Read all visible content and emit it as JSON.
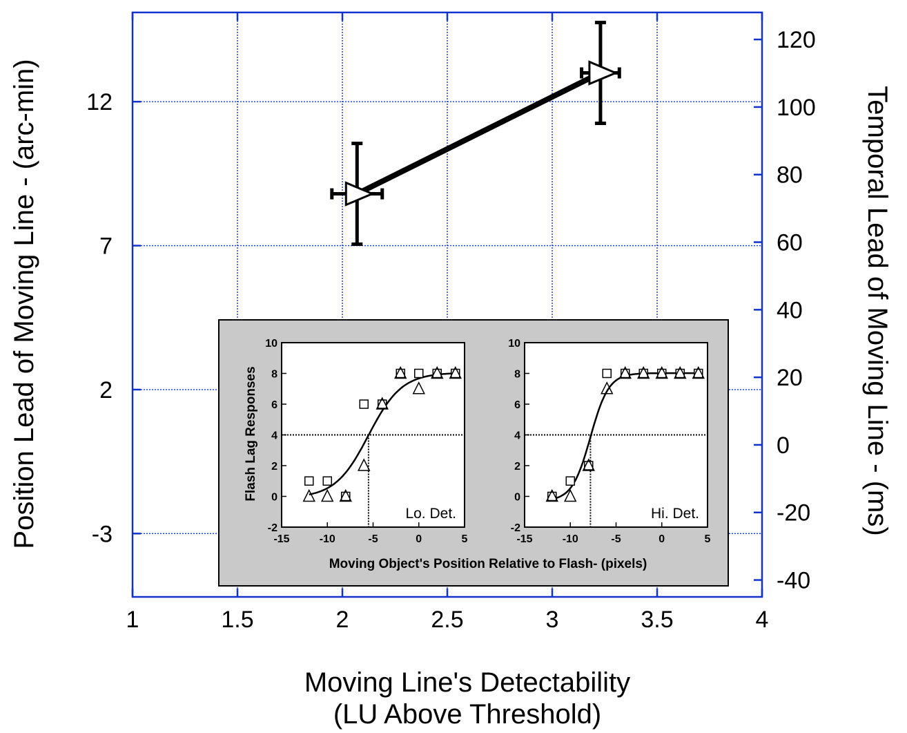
{
  "chart_data": [
    {
      "type": "line",
      "x_axis": {
        "label_line1": "Moving Line's Detectability",
        "label_line2": "(LU Above Threshold)",
        "range": [
          1,
          4
        ],
        "ticks": [
          "1",
          "1.5",
          "2",
          "2.5",
          "3",
          "3.5",
          "4"
        ]
      },
      "y_axis_left": {
        "label": "Position Lead of Moving Line - (arc-min)",
        "range": [
          -5.2,
          15.1
        ],
        "ticks": [
          "-3",
          "2",
          "7",
          "12"
        ]
      },
      "y_axis_right": {
        "label": "Temporal Lead of Moving Line - (ms)",
        "range": [
          -45,
          128
        ],
        "ticks": [
          "-40",
          "-20",
          "0",
          "20",
          "40",
          "60",
          "80",
          "100",
          "120"
        ]
      },
      "grid": true,
      "grid_color": "#1133cc",
      "series": [
        {
          "marker": "triangle-right",
          "points": [
            {
              "x": 2.07,
              "y": 8.8,
              "x_err": 0.12,
              "y_err": 1.75
            },
            {
              "x": 3.23,
              "y": 13.0,
              "x_err": 0.09,
              "y_err": 1.75
            }
          ]
        }
      ]
    },
    {
      "type": "scatter",
      "panel_label": "Lo. Det.",
      "ylabel": "Flash Lag Responses",
      "xlabel": "Moving Object's Position Relative to Flash- (pixels)",
      "x_range": [
        -15,
        5
      ],
      "y_range": [
        -2,
        10
      ],
      "x_ticks": [
        "-15",
        "-10",
        "-5",
        "0",
        "5"
      ],
      "y_ticks": [
        "-2",
        "0",
        "2",
        "4",
        "6",
        "8",
        "10"
      ],
      "threshold_y": 4,
      "threshold_x": -5.5,
      "series": [
        {
          "marker": "square",
          "x": [
            -12,
            -10,
            -8,
            -6,
            -4,
            -2,
            0,
            2,
            4
          ],
          "y": [
            1,
            1,
            0,
            6,
            6,
            8,
            8,
            8,
            8
          ]
        },
        {
          "marker": "triangle",
          "x": [
            -12,
            -10,
            -8,
            -6,
            -4,
            -2,
            0,
            2,
            4
          ],
          "y": [
            0,
            0,
            0,
            2,
            6,
            8,
            7,
            8,
            8
          ]
        }
      ],
      "fit": {
        "x0": -5.5,
        "slope": 0.55,
        "min": -0.1,
        "max": 8.05
      }
    },
    {
      "type": "scatter",
      "panel_label": "Hi. Det.",
      "ylabel": "",
      "xlabel": "Moving Object's Position Relative to Flash- (pixels)",
      "x_range": [
        -15,
        5
      ],
      "y_range": [
        -2,
        10
      ],
      "x_ticks": [
        "-15",
        "-10",
        "-5",
        "0",
        "5"
      ],
      "y_ticks": [
        "-2",
        "0",
        "2",
        "4",
        "6",
        "8",
        "10"
      ],
      "threshold_y": 4,
      "threshold_x": -7.8,
      "series": [
        {
          "marker": "square",
          "x": [
            -12,
            -10,
            -8,
            -6,
            -4,
            -2,
            0,
            2,
            4
          ],
          "y": [
            0,
            1,
            2,
            8,
            8,
            8,
            8,
            8,
            8
          ]
        },
        {
          "marker": "triangle",
          "x": [
            -12,
            -10,
            -8,
            -6,
            -4,
            -2,
            0,
            2,
            4
          ],
          "y": [
            0,
            0,
            2,
            7,
            8,
            8,
            8,
            8,
            8
          ]
        }
      ],
      "fit": {
        "x0": -7.8,
        "slope": 1.0,
        "min": -0.3,
        "max": 8.02
      }
    }
  ]
}
